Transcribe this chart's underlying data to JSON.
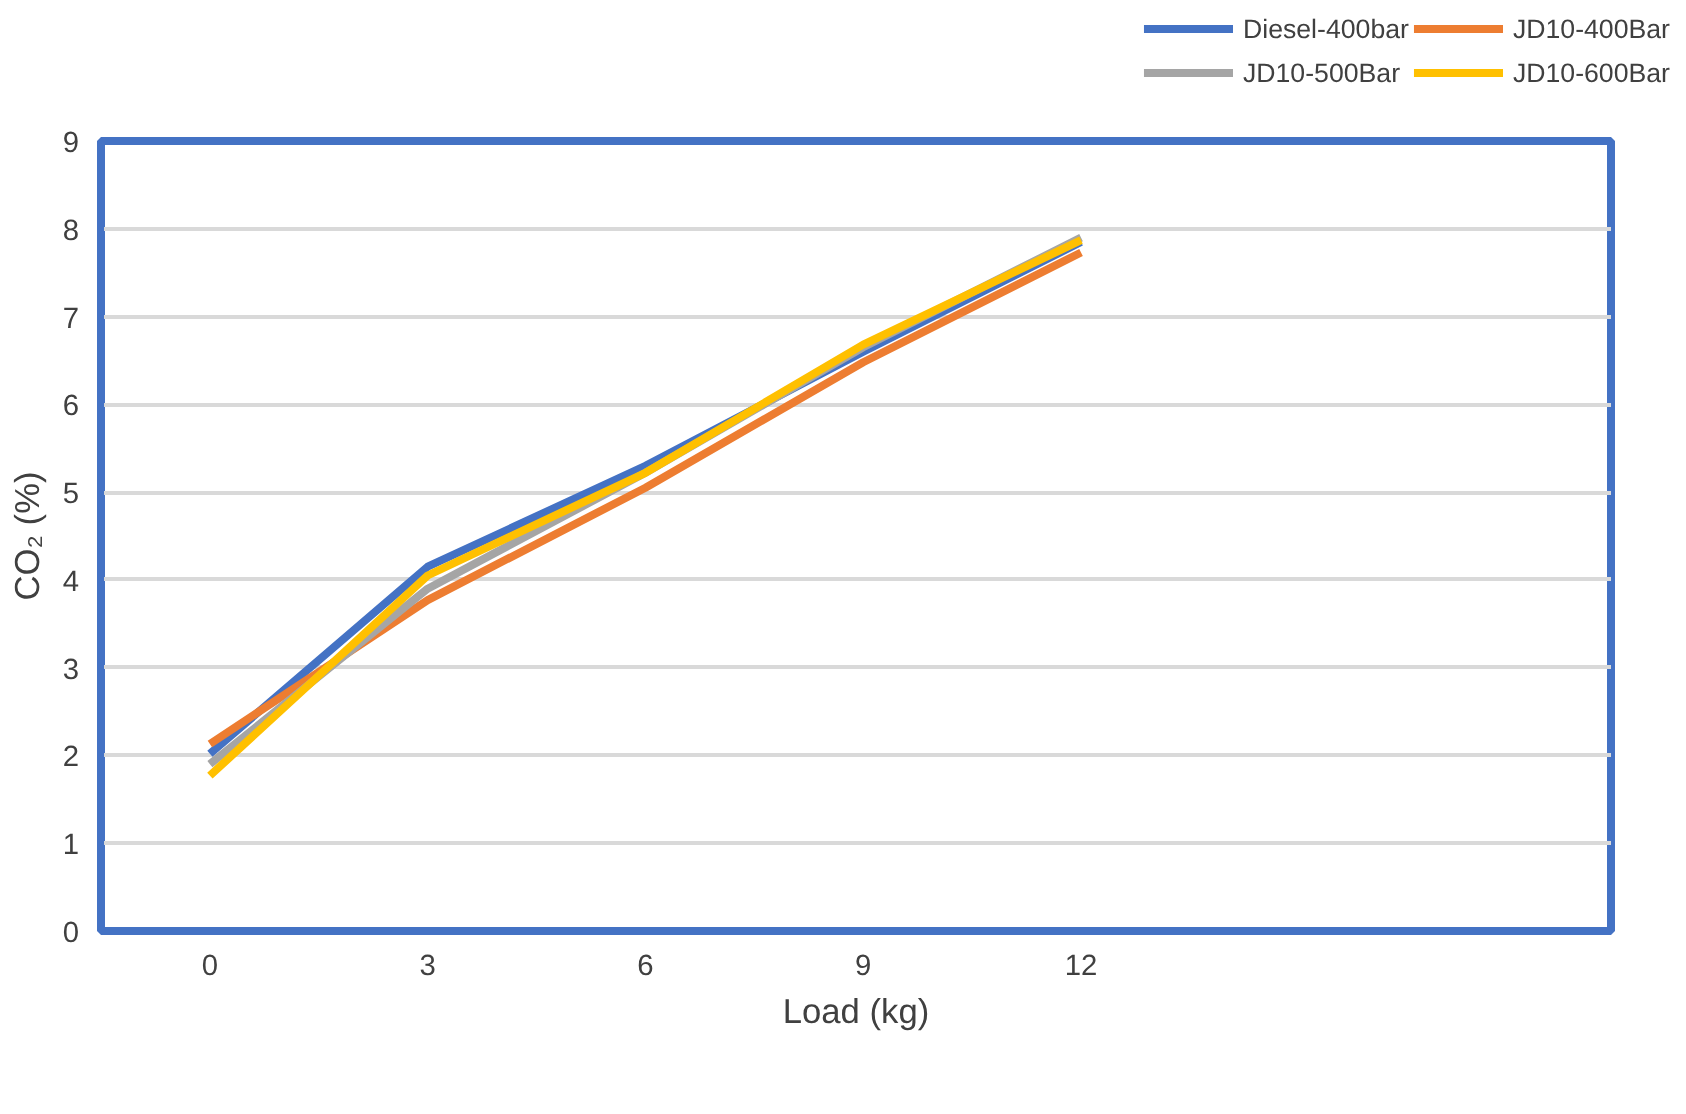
{
  "chart_data": {
    "type": "line",
    "xlabel": "Load (kg)",
    "ylabel": "CO₂ (%)",
    "x": [
      0,
      3,
      6,
      9,
      12
    ],
    "series": [
      {
        "name": "Diesel-400bar",
        "color": "#4472c4",
        "values": [
          2.02,
          4.15,
          5.3,
          6.6,
          7.85
        ]
      },
      {
        "name": "JD10-400Bar",
        "color": "#ed7d31",
        "values": [
          2.13,
          3.77,
          5.05,
          6.48,
          7.73
        ]
      },
      {
        "name": "JD10-500Bar",
        "color": "#a5a5a5",
        "values": [
          1.9,
          3.9,
          5.22,
          6.65,
          7.9
        ]
      },
      {
        "name": "JD10-600Bar",
        "color": "#ffc000",
        "values": [
          1.77,
          4.05,
          5.22,
          6.68,
          7.87
        ]
      }
    ],
    "xlim": [
      -1.5,
      19.3
    ],
    "ylim": [
      0,
      9
    ],
    "xticks": [
      0,
      3,
      6,
      9,
      12
    ],
    "yticks": [
      0,
      1,
      2,
      3,
      4,
      5,
      6,
      7,
      8,
      9
    ],
    "grid": "y",
    "legend": "top right",
    "marker": "none",
    "line_style": "solid"
  }
}
